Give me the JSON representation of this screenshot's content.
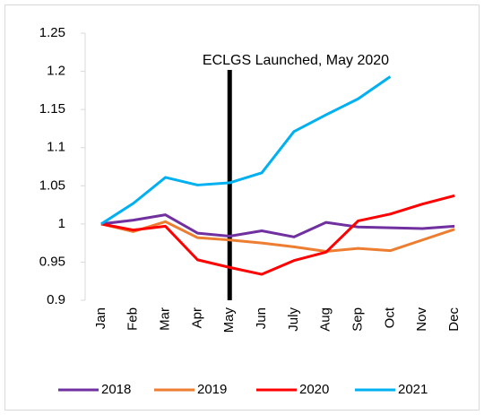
{
  "chart_data": {
    "type": "line",
    "categories": [
      "Jan",
      "Feb",
      "Mar",
      "Apr",
      "May",
      "Jun",
      "July",
      "Aug",
      "Sep",
      "Oct",
      "Nov",
      "Dec"
    ],
    "series": [
      {
        "name": "2018",
        "color": "#7030a0",
        "values": [
          1.0,
          1.005,
          1.012,
          0.988,
          0.984,
          0.991,
          0.983,
          1.002,
          0.996,
          0.995,
          0.994,
          0.997
        ]
      },
      {
        "name": "2019",
        "color": "#ed7d31",
        "values": [
          1.0,
          0.99,
          1.003,
          0.982,
          0.979,
          0.975,
          0.97,
          0.964,
          0.968,
          0.965,
          0.979,
          0.993
        ]
      },
      {
        "name": "2020",
        "color": "#ff0000",
        "values": [
          1.0,
          0.992,
          0.997,
          0.953,
          0.943,
          0.934,
          0.952,
          0.963,
          1.004,
          1.013,
          1.026,
          1.037
        ]
      },
      {
        "name": "2021",
        "color": "#00b0f0",
        "values": [
          1.0,
          1.027,
          1.061,
          1.051,
          1.054,
          1.067,
          1.121,
          1.143,
          1.164,
          1.193,
          null,
          null
        ]
      }
    ],
    "ylim": [
      0.9,
      1.25
    ],
    "yticks": [
      0.9,
      0.95,
      1,
      1.05,
      1.1,
      1.15,
      1.2,
      1.25
    ],
    "annotation": {
      "text": "ECLGS Launched, May 2020",
      "x": "May"
    },
    "legend": "bottom"
  }
}
